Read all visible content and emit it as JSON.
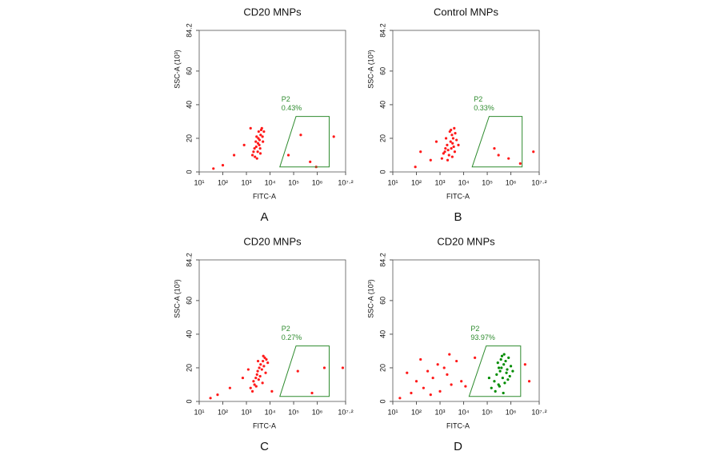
{
  "chart_data": [
    {
      "type": "scatter",
      "title": "CD20 MNPs",
      "panel_label": "A",
      "x_label": "FITC-A",
      "y_label": "SSC-A (10³)",
      "xscale": "log",
      "xlim": [
        10,
        15848932
      ],
      "ylim": [
        0,
        84.2
      ],
      "xticks": [
        {
          "value": 10,
          "label": "10¹"
        },
        {
          "value": 100,
          "label": "10²"
        },
        {
          "value": 1000,
          "label": "10³"
        },
        {
          "value": 10000,
          "label": "10⁴"
        },
        {
          "value": 100000,
          "label": "10⁵"
        },
        {
          "value": 1000000,
          "label": "10⁶"
        },
        {
          "value": 15848932,
          "label": "10⁷·²"
        }
      ],
      "yticks": [
        0,
        20,
        40,
        60,
        84.2
      ],
      "gate": {
        "label": "P2",
        "value": 0.43,
        "value_label": "0.43%",
        "color": "#2e8b2e",
        "x": [
          26000,
          126000,
          3200000,
          3200000
        ],
        "y": [
          3,
          33,
          33,
          3
        ]
      },
      "series": [
        {
          "color": "#ff1a1a",
          "x": [
            1800,
            2200,
            2500,
            3000,
            3200,
            3500,
            4000,
            4200,
            2800,
            3800,
            5000,
            4500,
            2000,
            3300,
            2600,
            3600,
            4800,
            2300,
            3100,
            5500,
            2700,
            3900,
            100,
            300,
            800,
            40,
            1500,
            60000,
            500000,
            900000,
            200000,
            5000000
          ],
          "y": [
            10,
            14,
            18,
            12,
            20,
            16,
            22,
            25,
            8,
            14,
            18,
            26,
            12,
            24,
            15,
            19,
            21,
            9,
            17,
            24,
            21,
            11,
            4,
            10,
            16,
            2,
            26,
            10,
            6,
            3,
            22,
            21
          ]
        }
      ]
    },
    {
      "type": "scatter",
      "title": "Control MNPs",
      "panel_label": "B",
      "x_label": "FITC-A",
      "y_label": "SSC-A (10³)",
      "xscale": "log",
      "xlim": [
        10,
        15848932
      ],
      "ylim": [
        0,
        84.2
      ],
      "xticks": [
        {
          "value": 10,
          "label": "10¹"
        },
        {
          "value": 100,
          "label": "10²"
        },
        {
          "value": 1000,
          "label": "10³"
        },
        {
          "value": 10000,
          "label": "10⁴"
        },
        {
          "value": 100000,
          "label": "10⁵"
        },
        {
          "value": 1000000,
          "label": "10⁶"
        },
        {
          "value": 15848932,
          "label": "10⁷·²"
        }
      ],
      "yticks": [
        0,
        20,
        40,
        60,
        84.2
      ],
      "gate": {
        "label": "P2",
        "value": 0.33,
        "value_label": "0.33%",
        "color": "#2e8b2e",
        "x": [
          23000,
          120000,
          3000000,
          3000000
        ],
        "y": [
          3,
          33,
          33,
          3
        ]
      },
      "series": [
        {
          "color": "#ff1a1a",
          "x": [
            1200,
            1600,
            2000,
            2400,
            2800,
            3200,
            3600,
            4000,
            1800,
            2600,
            3000,
            3400,
            4400,
            2200,
            1400,
            2900,
            3800,
            5000,
            2100,
            3300,
            1700,
            4200,
            150,
            400,
            700,
            90,
            6000,
            200000,
            800000,
            2500000,
            300000,
            9000000
          ],
          "y": [
            8,
            12,
            16,
            10,
            18,
            22,
            20,
            26,
            20,
            24,
            14,
            17,
            23,
            13,
            11,
            25,
            15,
            19,
            7,
            9,
            14,
            12,
            12,
            7,
            18,
            3,
            16,
            14,
            8,
            5,
            10,
            12
          ]
        }
      ]
    },
    {
      "type": "scatter",
      "title": "CD20 MNPs",
      "panel_label": "C",
      "x_label": "FITC-A",
      "y_label": "SSC-A (10³)",
      "xscale": "log",
      "xlim": [
        10,
        15848932
      ],
      "ylim": [
        0,
        84.2
      ],
      "xticks": [
        {
          "value": 10,
          "label": "10¹"
        },
        {
          "value": 100,
          "label": "10²"
        },
        {
          "value": 1000,
          "label": "10³"
        },
        {
          "value": 10000,
          "label": "10⁴"
        },
        {
          "value": 100000,
          "label": "10⁵"
        },
        {
          "value": 1000000,
          "label": "10⁶"
        },
        {
          "value": 15848932,
          "label": "10⁷·²"
        }
      ],
      "yticks": [
        0,
        20,
        40,
        60,
        84.2
      ],
      "gate": {
        "label": "P2",
        "value": 0.27,
        "value_label": "0.27%",
        "color": "#2e8b2e",
        "x": [
          26000,
          126000,
          3200000,
          3200000
        ],
        "y": [
          3,
          33,
          33,
          3
        ]
      },
      "series": [
        {
          "color": "#ff1a1a",
          "x": [
            1500,
            2000,
            2500,
            3000,
            3500,
            4000,
            5000,
            6000,
            7000,
            2200,
            2800,
            3300,
            4500,
            5500,
            6500,
            1800,
            2600,
            3800,
            4800,
            8000,
            3100,
            5200,
            60,
            200,
            700,
            30,
            1200,
            12000,
            150000,
            600000,
            2000000,
            12000000
          ],
          "y": [
            8,
            12,
            14,
            18,
            20,
            22,
            24,
            26,
            25,
            10,
            16,
            13,
            19,
            21,
            17,
            6,
            9,
            15,
            11,
            23,
            24,
            27,
            4,
            8,
            14,
            2,
            19,
            6,
            18,
            5,
            20,
            20
          ]
        }
      ]
    },
    {
      "type": "scatter",
      "title": "CD20 MNPs",
      "panel_label": "D",
      "x_label": "FITC-A",
      "y_label": "SSC-A (10³)",
      "xscale": "log",
      "xlim": [
        10,
        15848932
      ],
      "ylim": [
        0,
        84.2
      ],
      "xticks": [
        {
          "value": 10,
          "label": "10¹"
        },
        {
          "value": 100,
          "label": "10²"
        },
        {
          "value": 1000,
          "label": "10³"
        },
        {
          "value": 10000,
          "label": "10⁴"
        },
        {
          "value": 100000,
          "label": "10⁵"
        },
        {
          "value": 1000000,
          "label": "10⁶"
        },
        {
          "value": 15848932,
          "label": "10⁷·²"
        }
      ],
      "yticks": [
        0,
        20,
        40,
        60,
        84.2
      ],
      "gate": {
        "label": "P2",
        "value": 93.97,
        "value_label": "93.97%",
        "color": "#2e8b2e",
        "x": [
          17000,
          90000,
          2600000,
          2600000
        ],
        "y": [
          3,
          33,
          33,
          3
        ]
      },
      "series": [
        {
          "color": "#008c00",
          "x": [
            150000,
            200000,
            250000,
            300000,
            350000,
            400000,
            450000,
            500000,
            600000,
            700000,
            800000,
            900000,
            1000000,
            220000,
            280000,
            330000,
            420000,
            550000,
            650000,
            750000,
            380000,
            480000,
            120000,
            1200000,
            520000,
            310000
          ],
          "y": [
            8,
            12,
            16,
            10,
            18,
            20,
            14,
            22,
            24,
            19,
            26,
            15,
            21,
            6,
            23,
            9,
            27,
            11,
            17,
            13,
            25,
            5,
            14,
            18,
            28,
            20
          ]
        },
        {
          "color": "#ff1a1a",
          "x": [
            60,
            100,
            200,
            300,
            500,
            800,
            1000,
            2000,
            3000,
            5000,
            8000,
            20,
            150,
            400,
            1500,
            2500,
            12000,
            30000,
            4000000,
            6000000,
            40
          ],
          "y": [
            5,
            12,
            8,
            18,
            14,
            22,
            6,
            16,
            10,
            24,
            12,
            2,
            25,
            4,
            20,
            28,
            9,
            26,
            22,
            12,
            17
          ]
        }
      ]
    }
  ]
}
